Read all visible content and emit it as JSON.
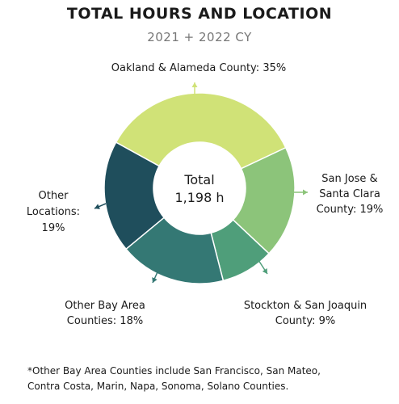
{
  "chart_data": {
    "type": "pie",
    "title": "TOTAL HOURS AND LOCATION",
    "subtitle": "2021 + 2022 CY",
    "center_label": "Total",
    "center_value": "1,198 h",
    "total_hours": 1198,
    "slices": [
      {
        "label": "Oakland & Alameda  County: 35%",
        "label_lines": [
          "Oakland & Alameda  County: 35%"
        ],
        "value": 35,
        "color": "#d0e277"
      },
      {
        "label": "San Jose & Santa Clara County: 19%",
        "label_lines": [
          "San Jose &",
          "Santa Clara",
          "County: 19%"
        ],
        "value": 19,
        "color": "#8cc47a"
      },
      {
        "label": "Stockton & San Joaquin County: 9%",
        "label_lines": [
          "Stockton & San Joaquin",
          "County: 9%"
        ],
        "value": 9,
        "color": "#4f9e7a"
      },
      {
        "label": "Other Bay Area Counties: 18%",
        "label_lines": [
          "Other Bay Area",
          "Counties: 18%"
        ],
        "value": 18,
        "color": "#347874"
      },
      {
        "label": "Other Locations: 19%",
        "label_lines": [
          "Other",
          "Locations:",
          "19%"
        ],
        "value": 19,
        "color": "#1f4e5c"
      }
    ]
  },
  "footnote_lines": [
    "*Other Bay Area Counties include San Francisco, San Mateo,",
    "Contra Costa, Marin, Napa, Sonoma, Solano Counties."
  ]
}
